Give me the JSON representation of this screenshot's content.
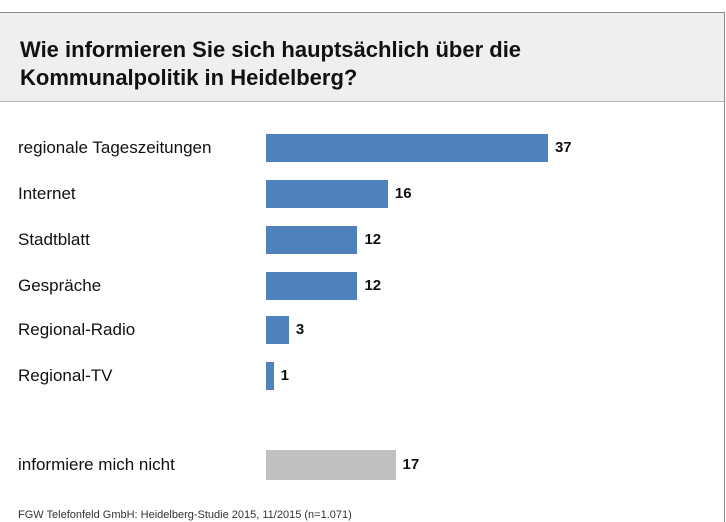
{
  "chart_data": {
    "type": "bar",
    "orientation": "horizontal",
    "title": "Wie informieren Sie sich hauptsächlich über die Kommunalpolitik in Heidelberg?",
    "categories": [
      "regionale Tageszeitungen",
      "Internet",
      "Stadtblatt",
      "Gespräche",
      "Regional-Radio",
      "Regional-TV",
      "informiere mich nicht"
    ],
    "values": [
      37,
      16,
      12,
      12,
      3,
      1,
      17
    ],
    "colors": {
      "primary": "#4f81bd",
      "not_informed": "#c0c0c0"
    },
    "grid": false,
    "legend": "none",
    "source": "FGW Telefonfeld GmbH: Heidelberg-Studie 2015, 11/2015 (n=1.071)"
  }
}
